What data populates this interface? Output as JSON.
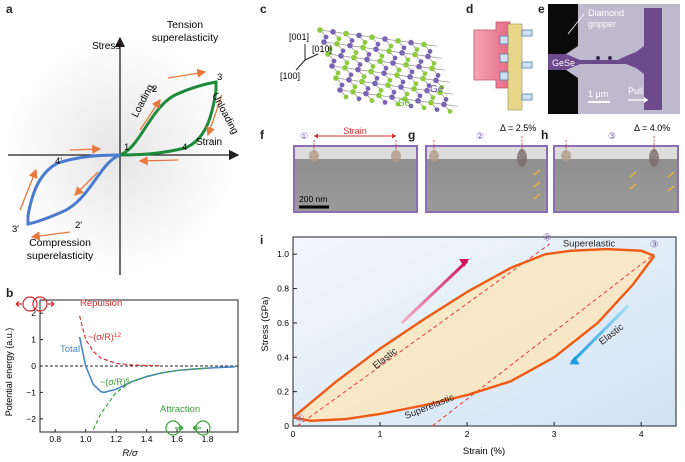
{
  "panels": {
    "a": {
      "label": "a",
      "axis_y": "Stress",
      "axis_x": "Strain",
      "tension_title": [
        "Tension",
        "superelasticity"
      ],
      "compression_title": [
        "Compression",
        "superelasticity"
      ],
      "loading": "Loading",
      "unloading": "Unloading",
      "points": [
        "1",
        "2",
        "3",
        "4",
        "2'",
        "3'",
        "4'"
      ],
      "colors": {
        "tension": "#1e8a3c",
        "compression": "#4a7bd0",
        "arrow": "#e8783c"
      }
    },
    "b": {
      "label": "b",
      "repulsion": "Repulsion",
      "attraction": "Attraction",
      "total": "Total",
      "rep_formula": "~(σ/R)",
      "rep_exp": "12",
      "att_formula": "−(σ/R)",
      "att_exp": "6",
      "xlabel": "R/σ",
      "ylabel": "Potential energy (a.u.)",
      "xticks": [
        "0.8",
        "1.0",
        "1.2",
        "1.4",
        "1.6",
        "1.8"
      ],
      "yticks": [
        "2",
        "1",
        "0",
        "−1",
        "−2"
      ],
      "colors": {
        "total": "#4a86c5",
        "repulsion": "#d62a2a",
        "attraction": "#3aa33a"
      }
    },
    "c": {
      "label": "c",
      "dir_001": "[001]",
      "dir_010": "[010]",
      "dir_100": "[100]",
      "se": "Se",
      "ge": "Ge"
    },
    "d": {
      "label": "d"
    },
    "e": {
      "label": "e",
      "gripper": [
        "Diamond",
        "gripper"
      ],
      "material": "GeSe",
      "scale": "1 μm",
      "pull": "Pull"
    },
    "f": {
      "label": "f",
      "strain": "Strain",
      "marker": "①",
      "scale": "200 nm"
    },
    "g": {
      "label": "g",
      "marker": "②",
      "delta": "Δ = 2.5%"
    },
    "h": {
      "label": "h",
      "marker": "③",
      "delta": "Δ = 4.0%"
    },
    "i": {
      "label": "i",
      "xlabel": "Strain (%)",
      "ylabel": "Stress (GPa)",
      "xticks": [
        "0",
        "1",
        "2",
        "3",
        "4"
      ],
      "yticks": [
        "0",
        "0.2",
        "0.4",
        "0.6",
        "0.8",
        "1.0"
      ],
      "superelastic_top": "Superelastic",
      "superelastic_bottom": "Superelastic",
      "elastic_left": "Elastic",
      "elastic_right": "Elastic",
      "markers": [
        "①",
        "②",
        "③"
      ]
    }
  },
  "chart_data": [
    {
      "type": "line",
      "panel": "b",
      "xlabel": "R/σ",
      "ylabel": "Potential energy (a.u.)",
      "xlim": [
        0.7,
        2.0
      ],
      "ylim": [
        -2.5,
        2.5
      ],
      "series": [
        {
          "name": "Total",
          "x": [
            0.96,
            1.0,
            1.05,
            1.1,
            1.12,
            1.2,
            1.3,
            1.4,
            1.5,
            1.6,
            1.7,
            1.8,
            1.9,
            1.98
          ],
          "y": [
            1.1,
            0.0,
            -0.7,
            -0.97,
            -1.0,
            -0.88,
            -0.6,
            -0.4,
            -0.26,
            -0.17,
            -0.12,
            -0.08,
            -0.05,
            -0.03
          ]
        },
        {
          "name": "Repulsion",
          "x": [
            0.96,
            1.0,
            1.05,
            1.1,
            1.2,
            1.3,
            1.4,
            1.5
          ],
          "y": [
            1.9,
            1.0,
            0.55,
            0.3,
            0.1,
            0.04,
            0.02,
            0.01
          ]
        },
        {
          "name": "Attraction",
          "x": [
            1.05,
            1.1,
            1.2,
            1.3,
            1.4,
            1.5,
            1.6,
            1.7,
            1.8
          ],
          "y": [
            -2.4,
            -1.8,
            -1.0,
            -0.6,
            -0.4,
            -0.26,
            -0.17,
            -0.12,
            -0.08
          ]
        }
      ]
    },
    {
      "type": "line",
      "panel": "i",
      "xlabel": "Strain (%)",
      "ylabel": "Stress (GPa)",
      "xlim": [
        0,
        4.4
      ],
      "ylim": [
        0,
        1.1
      ],
      "series": [
        {
          "name": "Loading",
          "x": [
            0.0,
            0.5,
            1.0,
            1.5,
            2.0,
            2.5,
            2.9,
            3.2,
            3.6,
            4.0,
            4.15
          ],
          "y": [
            0.05,
            0.26,
            0.45,
            0.62,
            0.78,
            0.92,
            1.0,
            1.02,
            1.03,
            1.02,
            0.99
          ]
        },
        {
          "name": "Unloading",
          "x": [
            4.15,
            3.9,
            3.5,
            3.0,
            2.5,
            2.0,
            1.5,
            1.0,
            0.6,
            0.2,
            0.0
          ],
          "y": [
            0.99,
            0.82,
            0.6,
            0.4,
            0.26,
            0.18,
            0.12,
            0.07,
            0.04,
            0.03,
            0.05
          ]
        }
      ]
    }
  ]
}
